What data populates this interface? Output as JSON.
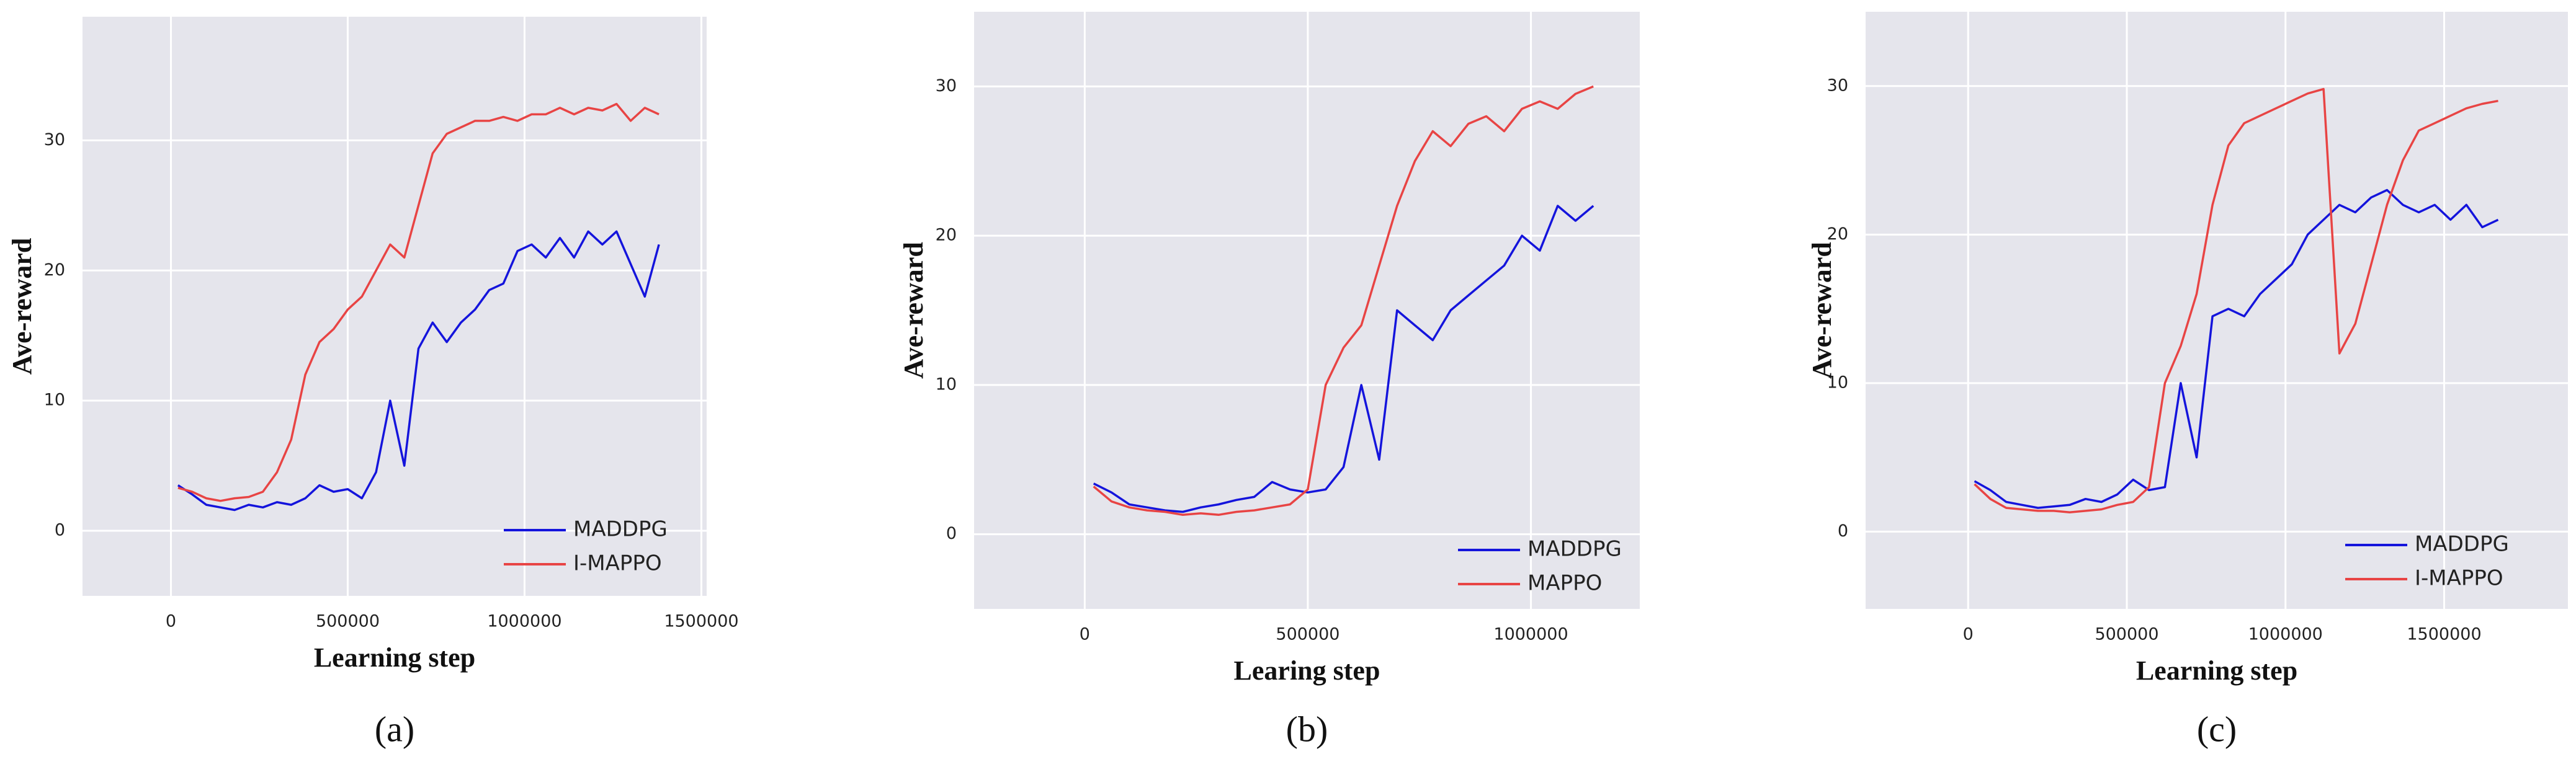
{
  "chart_data": [
    {
      "type": "line",
      "caption": "(a)",
      "xlabel": "Learning step",
      "ylabel": "Ave-reward",
      "x": [
        20000,
        60000,
        100000,
        140000,
        180000,
        220000,
        260000,
        300000,
        340000,
        380000,
        420000,
        460000,
        500000,
        540000,
        580000,
        620000,
        660000,
        700000,
        740000,
        780000,
        820000,
        860000,
        900000,
        940000,
        980000,
        1020000,
        1060000,
        1100000,
        1140000,
        1180000,
        1220000,
        1260000,
        1300000,
        1340000,
        1380000
      ],
      "series": [
        {
          "name": "MADDPG",
          "color": "#1414dc",
          "values": [
            3.5,
            2.8,
            2,
            1.8,
            1.6,
            2,
            1.8,
            2.2,
            2,
            2.5,
            3.5,
            3,
            3.2,
            2.5,
            4.5,
            10,
            5,
            14,
            16,
            14.5,
            16,
            17,
            18.5,
            19,
            21.5,
            22,
            21,
            22.5,
            21,
            23,
            22,
            23,
            20.5,
            18,
            22
          ]
        },
        {
          "name": "I-MAPPO",
          "color": "#e84444",
          "values": [
            3.3,
            3,
            2.5,
            2.3,
            2.5,
            2.6,
            3,
            4.5,
            7,
            12,
            14.5,
            15.5,
            17,
            18,
            20,
            22,
            21,
            25,
            29,
            30.5,
            31,
            31.5,
            31.5,
            31.8,
            31.5,
            32,
            32,
            32.5,
            32,
            32.5,
            32.3,
            32.8,
            31.5,
            32.5,
            32
          ]
        }
      ],
      "xlim": [
        -250000,
        1515000
      ],
      "ylim": [
        -5,
        39.5
      ],
      "xticks": [
        0,
        500000,
        1000000,
        1500000
      ],
      "yticks": [
        0,
        10,
        20,
        30
      ],
      "grid": true,
      "legend": "lower right"
    },
    {
      "type": "line",
      "caption": "(b)",
      "xlabel": "Learing step",
      "ylabel": "Ave-reward",
      "x": [
        20000,
        60000,
        100000,
        140000,
        180000,
        220000,
        260000,
        300000,
        340000,
        380000,
        420000,
        460000,
        500000,
        540000,
        580000,
        620000,
        660000,
        700000,
        740000,
        780000,
        820000,
        860000,
        900000,
        940000,
        980000,
        1020000,
        1060000,
        1100000,
        1140000
      ],
      "series": [
        {
          "name": "MADDPG",
          "color": "#1414dc",
          "values": [
            3.4,
            2.8,
            2,
            1.8,
            1.6,
            1.5,
            1.8,
            2,
            2.3,
            2.5,
            3.5,
            3,
            2.8,
            3,
            4.5,
            10,
            5,
            15,
            14,
            13,
            15,
            16,
            17,
            18,
            20,
            19,
            22,
            21,
            22
          ]
        },
        {
          "name": "MAPPO",
          "color": "#e84444",
          "values": [
            3.2,
            2.2,
            1.8,
            1.6,
            1.5,
            1.3,
            1.4,
            1.3,
            1.5,
            1.6,
            1.8,
            2,
            3,
            10,
            12.5,
            14,
            18,
            22,
            25,
            27,
            26,
            27.5,
            28,
            27,
            28.5,
            29,
            28.5,
            29.5,
            30
          ]
        }
      ],
      "xlim": [
        -248000,
        1244000
      ],
      "ylim": [
        -5,
        35
      ],
      "xticks": [
        0,
        500000,
        1000000
      ],
      "yticks": [
        0,
        10,
        20,
        30
      ],
      "grid": true,
      "legend": "lower right"
    },
    {
      "type": "line",
      "caption": "(c)",
      "xlabel": "Learning step",
      "ylabel": "Ave-reward",
      "x": [
        20000,
        70000,
        120000,
        170000,
        220000,
        270000,
        320000,
        370000,
        420000,
        470000,
        520000,
        570000,
        620000,
        670000,
        720000,
        770000,
        820000,
        870000,
        920000,
        970000,
        1020000,
        1070000,
        1120000,
        1170000,
        1220000,
        1270000,
        1320000,
        1370000,
        1420000,
        1470000,
        1520000,
        1570000,
        1620000,
        1670000
      ],
      "series": [
        {
          "name": "MADDPG",
          "color": "#1414dc",
          "values": [
            3.4,
            2.8,
            2,
            1.8,
            1.6,
            1.7,
            1.8,
            2.2,
            2,
            2.5,
            3.5,
            2.8,
            3,
            10,
            5,
            14.5,
            15,
            14.5,
            16,
            17,
            18,
            20,
            21,
            22,
            21.5,
            22.5,
            23,
            22,
            21.5,
            22,
            21,
            22,
            20.5,
            21
          ]
        },
        {
          "name": "I-MAPPO",
          "color": "#e84444",
          "values": [
            3.2,
            2.2,
            1.6,
            1.5,
            1.4,
            1.4,
            1.3,
            1.4,
            1.5,
            1.8,
            2,
            3,
            10,
            12.5,
            16,
            22,
            26,
            27.5,
            28,
            28.5,
            29,
            29.5,
            29.8,
            12,
            14,
            18,
            22,
            25,
            27,
            27.5,
            28,
            28.5,
            28.8,
            29
          ]
        }
      ],
      "xlim": [
        -323000,
        1890000
      ],
      "ylim": [
        -5.2,
        35
      ],
      "xticks": [
        0,
        500000,
        1000000,
        1500000
      ],
      "yticks": [
        0,
        10,
        20,
        30
      ],
      "grid": true,
      "legend": "lower right"
    }
  ]
}
